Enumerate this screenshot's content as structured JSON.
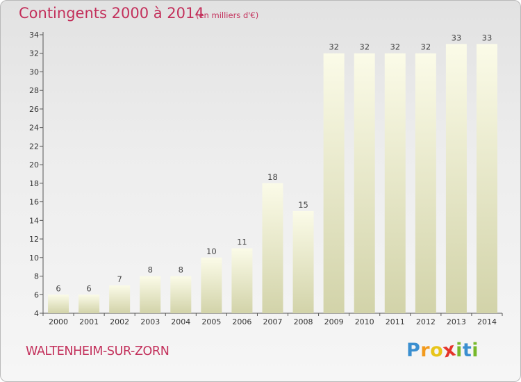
{
  "header": {
    "title": "Contingents 2000 à 2014",
    "unit": "(en milliers d'€)"
  },
  "footer": {
    "commune": "WALTENHEIM-SUR-ZORN",
    "logo_letters": [
      "P",
      "r",
      "o",
      "x",
      "i",
      "t",
      "i"
    ],
    "logo_colors": [
      "#3b8fd0",
      "#f29a1d",
      "#e8c51a",
      "#e4342b",
      "#76b82a",
      "#3b8fd0",
      "#76b82a"
    ]
  },
  "colors": {
    "title": "#c3305b",
    "bar_top": "#fbfbe8",
    "bar_bottom": "#d2d3a9"
  },
  "chart_data": {
    "type": "bar",
    "title": "Contingents 2000 à 2014",
    "subtitle": "(en milliers d'€)",
    "categories": [
      "2000",
      "2001",
      "2002",
      "2003",
      "2004",
      "2005",
      "2006",
      "2007",
      "2008",
      "2009",
      "2010",
      "2011",
      "2012",
      "2013",
      "2014"
    ],
    "values": [
      6,
      6,
      7,
      8,
      8,
      10,
      11,
      18,
      15,
      32,
      32,
      32,
      32,
      33,
      33
    ],
    "data_labels": [
      "6",
      "6",
      "7",
      "8",
      "8",
      "10",
      "11",
      "18",
      "15",
      "32",
      "32",
      "32",
      "32",
      "33",
      "33"
    ],
    "ylim": [
      4,
      34
    ],
    "yticks": [
      4,
      6,
      8,
      10,
      12,
      14,
      16,
      18,
      20,
      22,
      24,
      26,
      28,
      30,
      32,
      34
    ],
    "xlabel": "",
    "ylabel": "",
    "grid": false,
    "legend": "none"
  }
}
